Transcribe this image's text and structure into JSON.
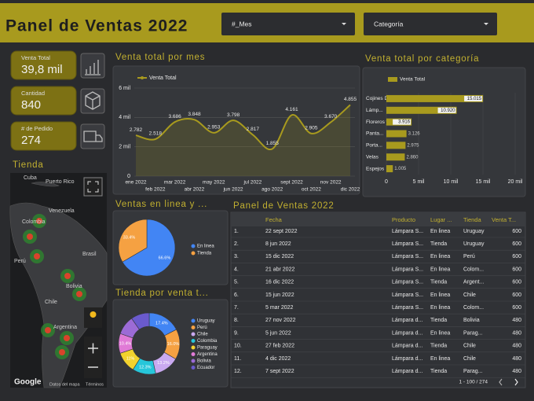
{
  "header": {
    "title": "Panel de Ventas 2022",
    "filters": [
      "#_Mes",
      "Categoría"
    ]
  },
  "kpis": [
    {
      "label": "Venta Total",
      "value": "39,8 mil"
    },
    {
      "label": "Cantidad",
      "value": "840"
    },
    {
      "label": "# de Pedido",
      "value": "274"
    }
  ],
  "map": {
    "title": "Tienda",
    "labels": [
      "Cuba",
      "Puerto Rico",
      "Venezuela",
      "Colombia",
      "Perú",
      "Brasil",
      "Bolivia",
      "Chile",
      "Argentina"
    ],
    "attribution": [
      "Google",
      "Datos del mapa",
      "Términos"
    ]
  },
  "chart_data": [
    {
      "type": "line",
      "title": "Venta total por mes",
      "categories": [
        "ene 2022",
        "feb 2022",
        "mar 2022",
        "abr 2022",
        "may 2022",
        "jun 2022",
        "jul 2022",
        "ago 2022",
        "sept 2022",
        "oct 2022",
        "nov 2022",
        "dic 2022"
      ],
      "series": [
        {
          "name": "Venta Total",
          "color": "#a89a1e",
          "values": [
            2782,
            2518,
            3686,
            3848,
            2953,
            3798,
            2817,
            1855,
            4161,
            2905,
            3670,
            4855
          ],
          "value_labels": [
            "2.782",
            "2.518",
            "3.686",
            "3.848",
            "2.953",
            "3.798",
            "2.817",
            "1.855",
            "4.161",
            "2.905",
            "3.670",
            "4.855"
          ]
        }
      ],
      "ylim": [
        0,
        6000
      ],
      "yticks": [
        0,
        {
          "value": 2000,
          "label": "2 mil"
        },
        {
          "value": 4000,
          "label": "4 mil"
        },
        {
          "value": 6000,
          "label": "6 mil"
        }
      ],
      "grid": true
    },
    {
      "type": "hbar",
      "title": "Venta total por categoría",
      "categories": [
        "Cojines Decor...",
        "Lámp...",
        "Floreros y Flores",
        "Panta...",
        "Porta...",
        "Velas",
        "Espejos"
      ],
      "series": [
        {
          "name": "Venta Total",
          "color": "#a89a1e",
          "values": [
            15015,
            10920,
            3916,
            3126,
            2975,
            2860,
            1005
          ],
          "value_labels": [
            "15.015",
            "10.920",
            "3.916",
            "3.126",
            "2.975",
            "2.860",
            "1.005"
          ]
        }
      ],
      "xlim": [
        0,
        20000
      ],
      "xticks": [
        0,
        {
          "value": 5000,
          "label": "5 mil"
        },
        {
          "value": 10000,
          "label": "10 mil"
        },
        {
          "value": 15000,
          "label": "15 mil"
        },
        {
          "value": 20000,
          "label": "20 mil"
        }
      ]
    },
    {
      "type": "pie",
      "title": "Ventas en linea y ...",
      "categories": [
        "En linea",
        "Tienda"
      ],
      "values": [
        66.6,
        33.4
      ],
      "value_labels": [
        "66.6%",
        "33.4%"
      ],
      "colors": [
        "#4285f4",
        "#f5a142"
      ]
    },
    {
      "type": "donut",
      "title": "Tienda por venta t...",
      "categories": [
        "Uruguay",
        "Perú",
        "Chile",
        "Colombia",
        "Paraguay",
        "Argentina",
        "Bolivia",
        "Ecuador"
      ],
      "values": [
        17.4,
        16,
        13.2,
        12.3,
        11,
        10.4,
        10,
        9.7
      ],
      "value_labels": [
        "17.4%",
        "16.0%",
        "13.2%",
        "12.3%",
        "11%",
        "10.4%",
        null,
        null
      ],
      "colors": [
        "#4285f4",
        "#f5a142",
        "#c9a9f0",
        "#26c6da",
        "#f2d22e",
        "#e07ad6",
        "#9c6bd6",
        "#6a5acd"
      ]
    }
  ],
  "table": {
    "title": "Panel de Ventas 2022",
    "header": [
      "Fecha",
      "Producto",
      "Lugar ...",
      "Tienda",
      "Venta T..."
    ],
    "rows": [
      [
        "1.",
        "22 sept 2022",
        "Lámpara S...",
        "En linea",
        "Uruguay",
        600
      ],
      [
        "2.",
        "8 jun 2022",
        "Lámpara S...",
        "Tienda",
        "Uruguay",
        600
      ],
      [
        "3.",
        "15 dic 2022",
        "Lámpara S...",
        "En linea",
        "Perú",
        600
      ],
      [
        "4.",
        "21 abr 2022",
        "Lámpara S...",
        "En linea",
        "Colom...",
        600
      ],
      [
        "5.",
        "16 dic 2022",
        "Lámpara S...",
        "Tienda",
        "Argent...",
        600
      ],
      [
        "6.",
        "15 jun 2022",
        "Lámpara S...",
        "En linea",
        "Chile",
        600
      ],
      [
        "7.",
        "5 mar 2022",
        "Lámpara S...",
        "En linea",
        "Colom...",
        600
      ],
      [
        "8.",
        "27 nov 2022",
        "Lámpara d...",
        "Tienda",
        "Bolivia",
        480
      ],
      [
        "9.",
        "5 jun 2022",
        "Lámpara d...",
        "En linea",
        "Parag...",
        480
      ],
      [
        "10.",
        "27 feb 2022",
        "Lámpara d...",
        "Tienda",
        "Chile",
        480
      ],
      [
        "11.",
        "4 dic 2022",
        "Lámpara d...",
        "En linea",
        "Chile",
        480
      ],
      [
        "12.",
        "7 sept 2022",
        "Lámpara d...",
        "Tienda",
        "Parag...",
        480
      ]
    ],
    "pagination": "1 - 100 / 274"
  }
}
